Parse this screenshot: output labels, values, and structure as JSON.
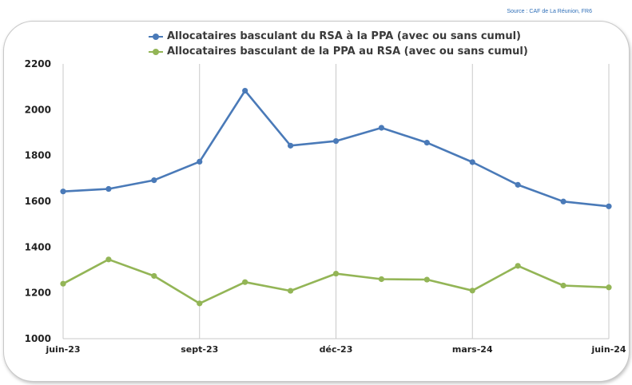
{
  "source": "Source : CAF de La Réunion, FR6",
  "colors": {
    "series_1": "#4a7ab8",
    "series_2": "#93b556",
    "axis": "#c9c9c9",
    "text": "#222222"
  },
  "chart_data": {
    "type": "line",
    "title": "",
    "xlabel": "",
    "ylabel": "",
    "x": [
      "juin-23",
      "juil-23",
      "août-23",
      "sept-23",
      "oct-23",
      "nov-23",
      "déc-23",
      "janv-24",
      "févr-24",
      "mars-24",
      "avr-24",
      "mai-24",
      "juin-24"
    ],
    "x_tick_labels": [
      "juin-23",
      "sept-23",
      "déc-23",
      "mars-24",
      "juin-24"
    ],
    "x_tick_indices": [
      0,
      3,
      6,
      9,
      12
    ],
    "ylim": [
      1000,
      2200
    ],
    "y_ticks": [
      1000,
      1200,
      1400,
      1600,
      1800,
      2000,
      2200
    ],
    "grid": "vertical lines at labeled x ticks",
    "legend_position": "top-center",
    "series": [
      {
        "name": "Allocataires basculant du RSA à la PPA (avec ou sans cumul)",
        "values": [
          1643,
          1654,
          1692,
          1773,
          2083,
          1843,
          1863,
          1921,
          1856,
          1771,
          1672,
          1599,
          1578
        ]
      },
      {
        "name": "Allocataires basculant de la PPA au RSA (avec ou sans cumul)",
        "values": [
          1240,
          1346,
          1274,
          1154,
          1247,
          1209,
          1284,
          1260,
          1258,
          1210,
          1318,
          1232,
          1224
        ]
      }
    ]
  }
}
